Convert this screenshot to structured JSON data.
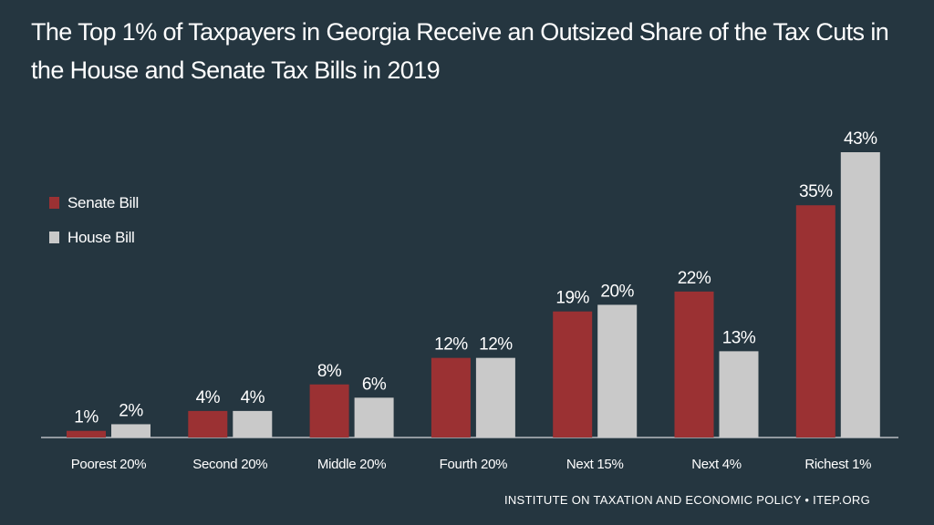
{
  "title": "The Top 1% of Taxpayers in Georgia Receive an Outsized Share of the Tax Cuts in the House and Senate Tax Bills in 2019",
  "footer": "INSTITUTE ON TAXATION AND ECONOMIC POLICY • ITEP.ORG",
  "colors": {
    "background": "#253640",
    "senate": "#9b3133",
    "house": "#c9c9c9"
  },
  "chart_data": {
    "type": "bar",
    "title": "The Top 1% of Taxpayers in Georgia Receive an Outsized Share of the Tax Cuts in the House and Senate Tax Bills in 2019",
    "categories": [
      "Poorest 20%",
      "Second 20%",
      "Middle 20%",
      "Fourth 20%",
      "Next 15%",
      "Next 4%",
      "Richest 1%"
    ],
    "series": [
      {
        "name": "Senate Bill",
        "values": [
          1,
          4,
          8,
          12,
          19,
          22,
          35
        ],
        "labels": [
          "1%",
          "4%",
          "8%",
          "12%",
          "19%",
          "22%",
          "35%"
        ]
      },
      {
        "name": "House Bill",
        "values": [
          2,
          4,
          6,
          12,
          20,
          13,
          43
        ],
        "labels": [
          "2%",
          "4%",
          "6%",
          "12%",
          "20%",
          "13%",
          "43%"
        ]
      }
    ],
    "xlabel": "",
    "ylabel": "",
    "ylim": [
      0,
      43
    ],
    "grid": false,
    "legend": "left"
  }
}
